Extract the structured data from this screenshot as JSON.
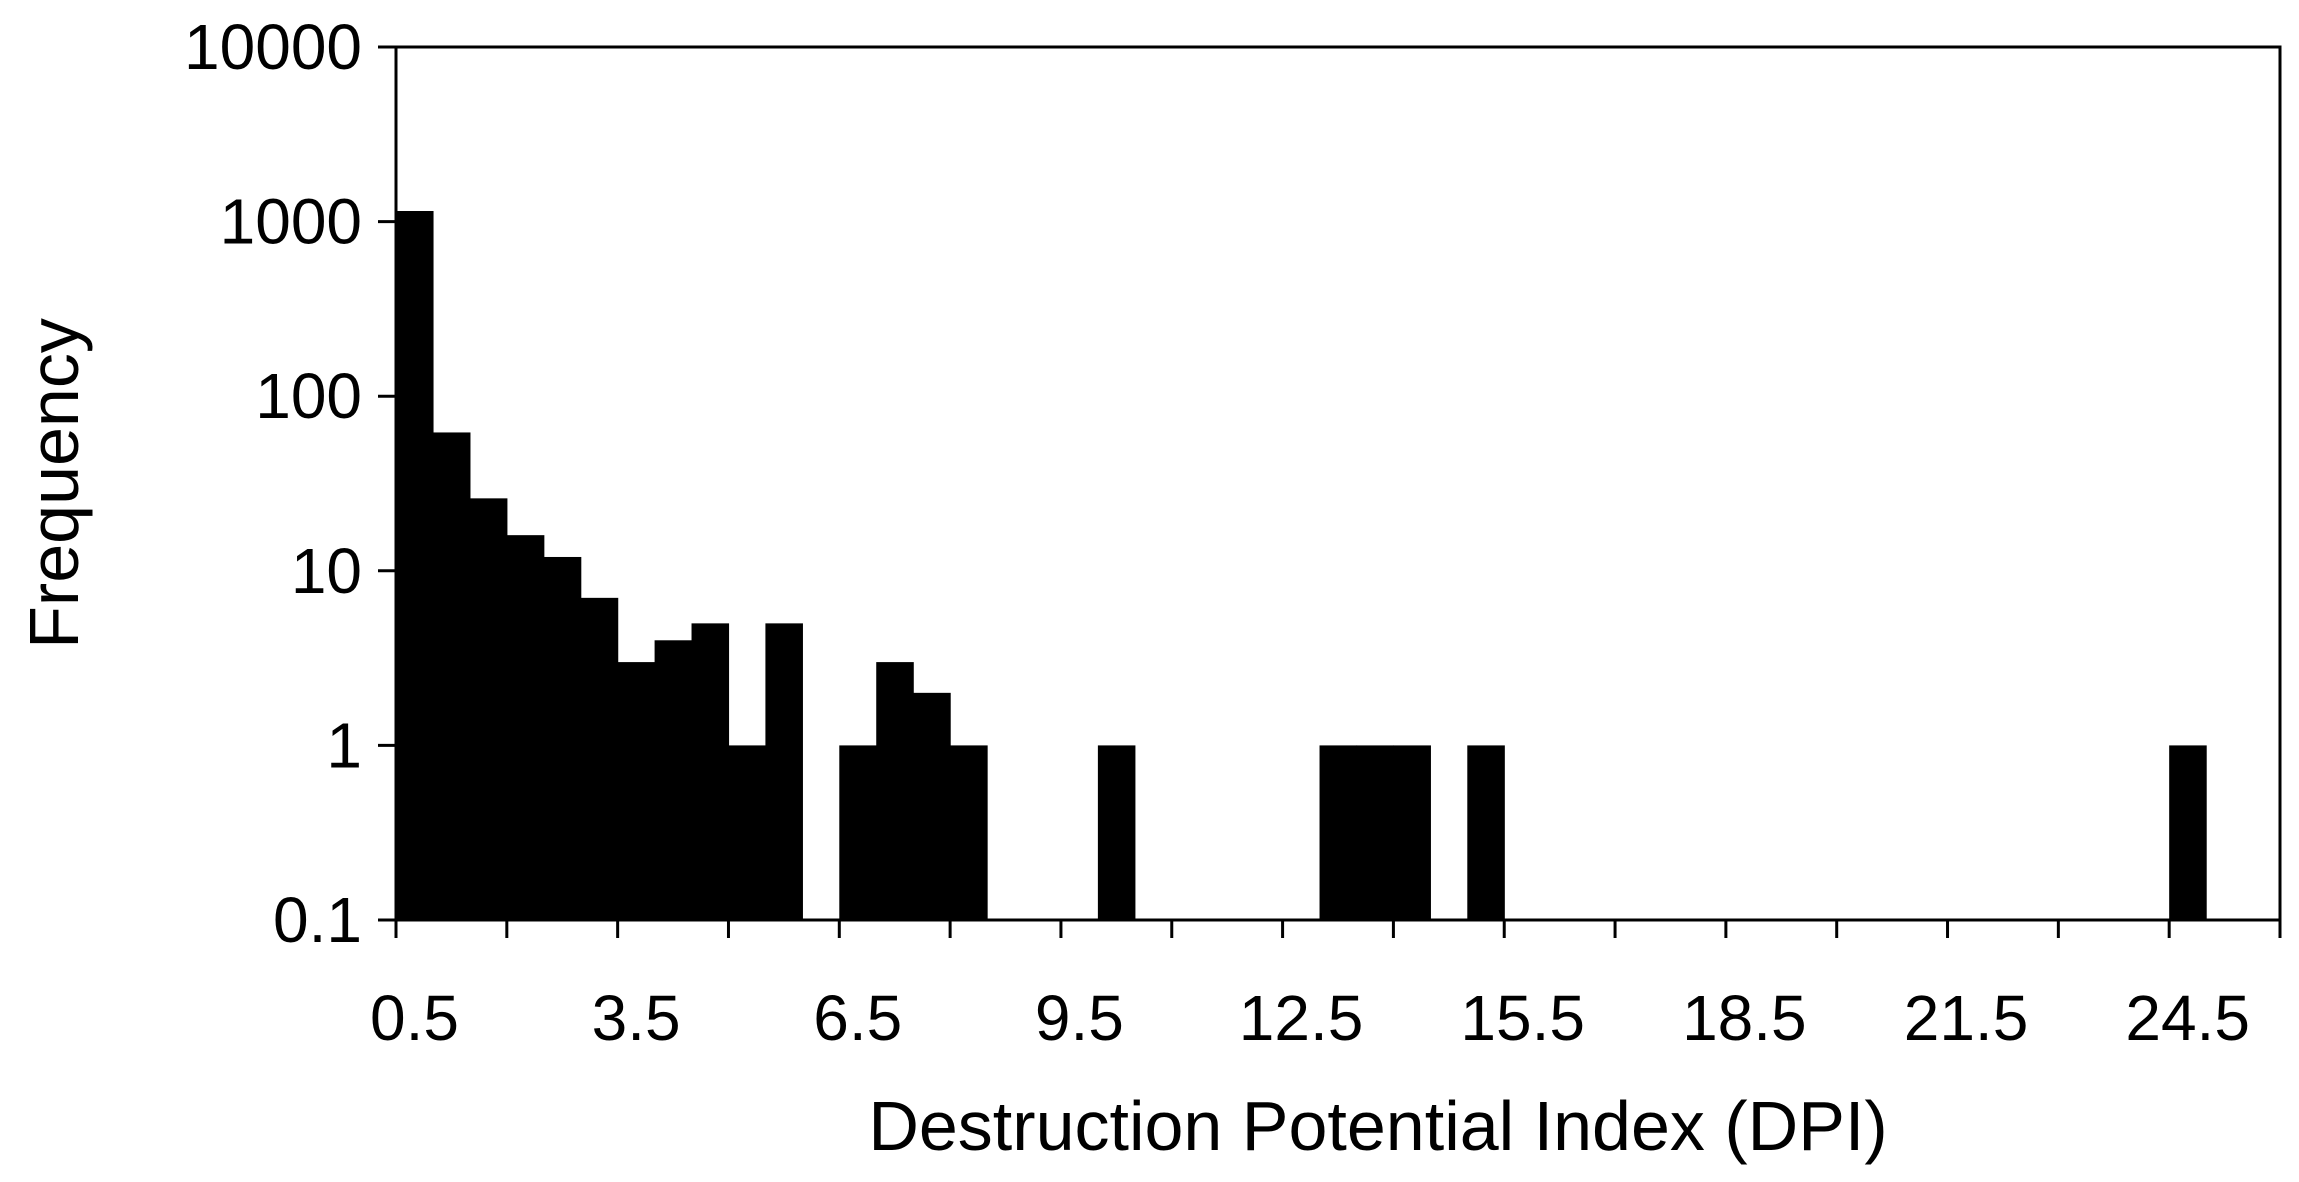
{
  "chart_data": {
    "type": "bar",
    "title": "",
    "xlabel": "Destruction Potential Index (DPI)",
    "ylabel": "Frequency",
    "y_scale": "log",
    "ylim": [
      0.1,
      10000
    ],
    "xlim": [
      0,
      25.5
    ],
    "bin_width": 0.5,
    "y_tick_labels": [
      "0.1",
      "1",
      "10",
      "100",
      "1000",
      "10000"
    ],
    "y_tick_values": [
      0.1,
      1,
      10,
      100,
      1000,
      10000
    ],
    "x_tick_labels": [
      "0.5",
      "3.5",
      "6.5",
      "9.5",
      "12.5",
      "15.5",
      "18.5",
      "21.5",
      "24.5"
    ],
    "x_tick_values": [
      0.5,
      3.5,
      6.5,
      9.5,
      12.5,
      15.5,
      18.5,
      21.5,
      24.5
    ],
    "grid": false,
    "bar_color": "#000000",
    "bins": [
      {
        "x": 0.5,
        "value": 1150
      },
      {
        "x": 1.0,
        "value": 62
      },
      {
        "x": 1.5,
        "value": 26
      },
      {
        "x": 2.0,
        "value": 16
      },
      {
        "x": 2.5,
        "value": 12
      },
      {
        "x": 3.0,
        "value": 7
      },
      {
        "x": 3.5,
        "value": 3
      },
      {
        "x": 4.0,
        "value": 4
      },
      {
        "x": 4.5,
        "value": 5
      },
      {
        "x": 5.0,
        "value": 1
      },
      {
        "x": 5.5,
        "value": 5
      },
      {
        "x": 6.5,
        "value": 1
      },
      {
        "x": 7.0,
        "value": 3
      },
      {
        "x": 7.5,
        "value": 2
      },
      {
        "x": 8.0,
        "value": 1
      },
      {
        "x": 10.0,
        "value": 1
      },
      {
        "x": 13.0,
        "value": 1
      },
      {
        "x": 13.5,
        "value": 1
      },
      {
        "x": 14.0,
        "value": 1
      },
      {
        "x": 15.0,
        "value": 1
      },
      {
        "x": 24.5,
        "value": 1
      }
    ]
  }
}
